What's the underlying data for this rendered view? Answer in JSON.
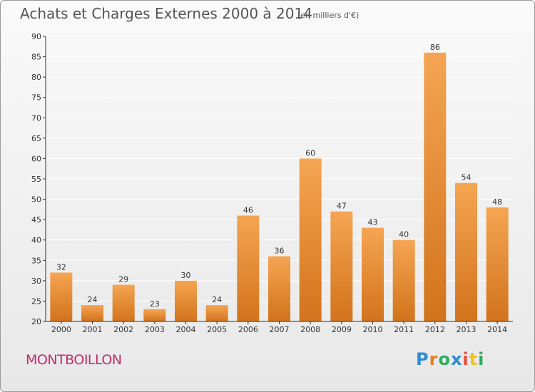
{
  "page": {
    "title": "Achats et Charges Externes 2000 à 2014",
    "subtitle": "(en milliers d'€)",
    "commune": "MONTBOILLON",
    "logo": "Proxiti"
  },
  "colors": {
    "bar_top": "#f5a552",
    "bar_bottom": "#d2731c",
    "commune": "#c0306a",
    "axis": "#333333",
    "grid": "#ffffff",
    "logo_letters": [
      "#2e8bd4",
      "#e67e22",
      "#27ae60",
      "#2e8bd4",
      "#e74c3c",
      "#f1c40f",
      "#27ae60"
    ]
  },
  "chart_data": {
    "type": "bar",
    "title": "Achats et Charges Externes 2000 à 2014",
    "subtitle": "(en milliers d'€)",
    "categories": [
      "2000",
      "2001",
      "2002",
      "2003",
      "2004",
      "2005",
      "2006",
      "2007",
      "2008",
      "2009",
      "2010",
      "2011",
      "2012",
      "2013",
      "2014"
    ],
    "values": [
      32,
      24,
      29,
      23,
      30,
      24,
      46,
      36,
      60,
      47,
      43,
      40,
      86,
      54,
      48
    ],
    "ylim": [
      20,
      90
    ],
    "yticks": [
      20,
      25,
      30,
      35,
      40,
      45,
      50,
      55,
      60,
      65,
      70,
      75,
      80,
      85,
      90
    ],
    "grid": "horizontal",
    "xlabel": "",
    "ylabel": ""
  }
}
